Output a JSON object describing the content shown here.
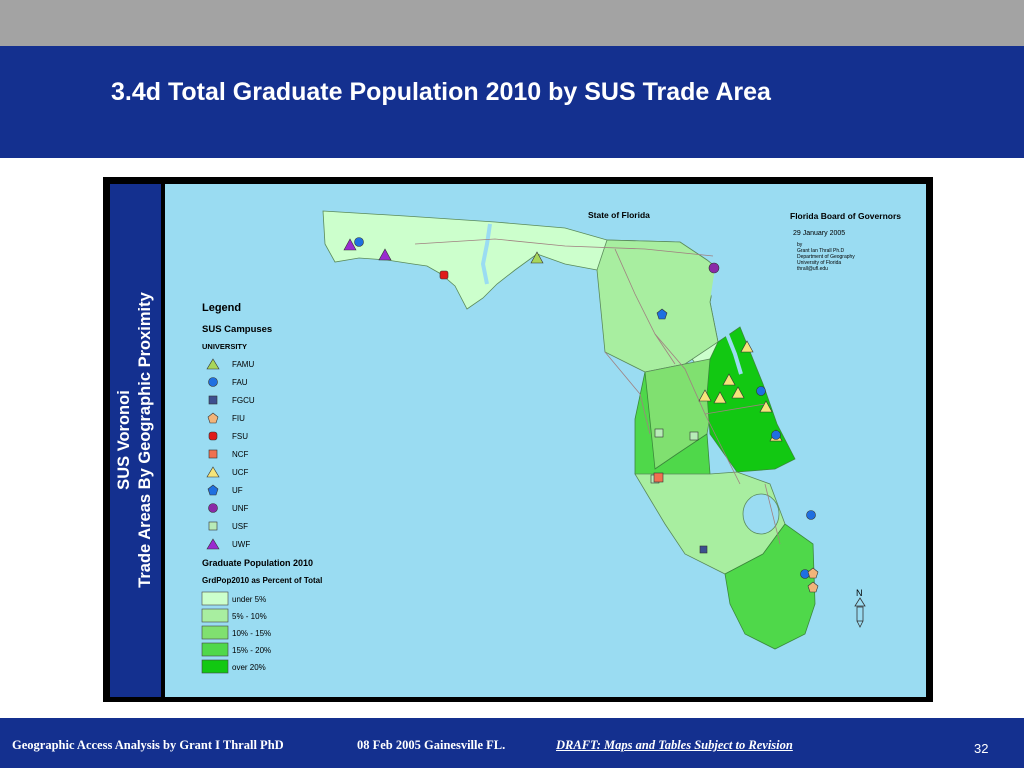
{
  "slide": {
    "title": "3.4d Total Graduate Population 2010 by SUS Trade Area",
    "side_title_line1": "SUS Voronoi",
    "side_title_line2": "Trade Areas By Geographic Proximity",
    "slide_number": "32"
  },
  "map": {
    "state_label": "State of Florida",
    "board_title": "Florida Board of Governors",
    "date": "29 January 2005",
    "credits": [
      "by",
      "Grant Ian Thrall Ph.D",
      "Department of Geography",
      "University of Florida",
      "thrall@ufl.edu"
    ],
    "north_label": "N"
  },
  "legend": {
    "title": "Legend",
    "campuses_title": "SUS Campuses",
    "campuses_subtitle": "UNIVERSITY",
    "campuses": [
      {
        "label": "FAMU",
        "shape": "triangle",
        "color": "#a8d65a"
      },
      {
        "label": "FAU",
        "shape": "circle",
        "color": "#1f6fe0"
      },
      {
        "label": "FGCU",
        "shape": "square",
        "color": "#3d4f8f"
      },
      {
        "label": "FIU",
        "shape": "pentagon",
        "color": "#f2b47a"
      },
      {
        "label": "FSU",
        "shape": "rounded-square",
        "color": "#e01a1a"
      },
      {
        "label": "NCF",
        "shape": "square",
        "color": "#f07050"
      },
      {
        "label": "UCF",
        "shape": "triangle",
        "color": "#f5e57a"
      },
      {
        "label": "UF",
        "shape": "pentagon",
        "color": "#1f6fe0"
      },
      {
        "label": "UNF",
        "shape": "circle",
        "color": "#8a2aa8"
      },
      {
        "label": "USF",
        "shape": "square",
        "color": "#b8ecb8"
      },
      {
        "label": "UWF",
        "shape": "triangle",
        "color": "#9a2ad0"
      }
    ],
    "population_title": "Graduate Population 2010",
    "population_subtitle": "GrdPop2010 as Percent of Total",
    "classes": [
      {
        "label": "under 5%",
        "color": "#ccffcc"
      },
      {
        "label": "5% - 10%",
        "color": "#a8eea0"
      },
      {
        "label": "10% - 15%",
        "color": "#80e070"
      },
      {
        "label": "15% - 20%",
        "color": "#4fd84a"
      },
      {
        "label": "over 20%",
        "color": "#12c812"
      }
    ]
  },
  "footer": {
    "author": "Geographic Access Analysis by Grant I Thrall PhD",
    "date_location": "08 Feb 2005  Gainesville FL.",
    "draft_note": "DRAFT:  Maps and Tables Subject to Revision"
  }
}
